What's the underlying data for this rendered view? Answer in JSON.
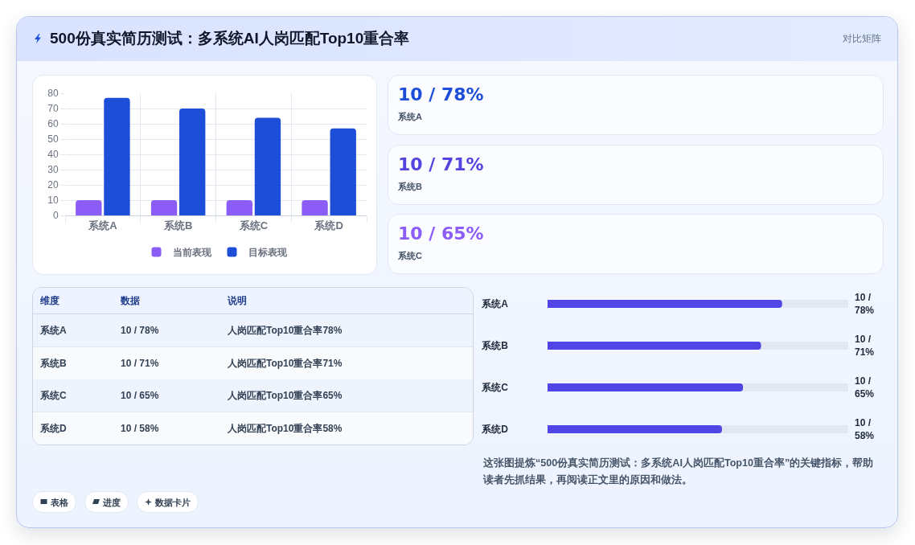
{
  "chart_data": [
    {
      "type": "other",
      "title": "500份真实简历测试：多系统AI人岗匹配Top10重合率",
      "subtitle": "对比矩阵"
    },
    {
      "type": "bar",
      "categories": [
        "系统A",
        "系统B",
        "系统C",
        "系统D"
      ],
      "series": [
        {
          "name": "当前表现",
          "color": "#8b5cf6",
          "values": [
            10,
            10,
            10,
            10
          ]
        },
        {
          "name": "目标表现",
          "color": "#1d4ed8",
          "values": [
            77,
            70,
            64,
            57
          ]
        }
      ],
      "ylim": [
        0,
        80
      ],
      "yticks": [
        0,
        10,
        20,
        30,
        40,
        50,
        60,
        70,
        80
      ],
      "grid": true,
      "legend": "bottom"
    },
    {
      "type": "other",
      "categories": [
        "系统A",
        "系统B",
        "系统C"
      ],
      "value_labels": [
        "10 / 78%",
        "10 / 71%",
        "10 / 65%"
      ]
    },
    {
      "type": "other",
      "categories": [
        "维度",
        "数据",
        "说明"
      ],
      "cell_labels": [
        [
          "系统A",
          "10 / 78%",
          "人岗匹配Top10重合率78%"
        ],
        [
          "系统B",
          "10 / 71%",
          "人岗匹配Top10重合率71%"
        ],
        [
          "系统C",
          "10 / 65%",
          "人岗匹配Top10重合率65%"
        ],
        [
          "系统D",
          "10 / 58%",
          "人岗匹配Top10重合率58%"
        ]
      ]
    },
    {
      "type": "bar",
      "orientation": "horizontal",
      "categories": [
        "系统A",
        "系统B",
        "系统C",
        "系统D"
      ],
      "values": [
        78,
        71,
        65,
        58
      ],
      "value_labels": [
        "10 / 78%",
        "10 / 71%",
        "10 / 65%",
        "10 / 58%"
      ],
      "color": "#4f46e5",
      "xlim": [
        0,
        100
      ],
      "tick_labels": "y",
      "annotations": [
        "这张图提炼“500份真实简历测试：多系统AI人岗匹配Top10重合率”的关键指标，帮助读者先抓结果，再阅读正文里的原因和做法。"
      ]
    },
    {
      "type": "other",
      "annotations": [
        "表格",
        "进度",
        "数据卡片"
      ]
    }
  ]
}
